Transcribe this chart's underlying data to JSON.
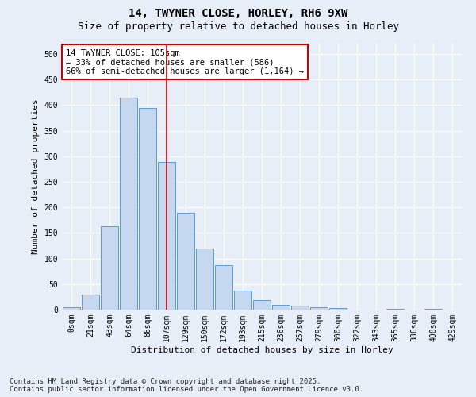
{
  "title": "14, TWYNER CLOSE, HORLEY, RH6 9XW",
  "subtitle": "Size of property relative to detached houses in Horley",
  "xlabel": "Distribution of detached houses by size in Horley",
  "ylabel": "Number of detached properties",
  "categories": [
    "0sqm",
    "21sqm",
    "43sqm",
    "64sqm",
    "86sqm",
    "107sqm",
    "129sqm",
    "150sqm",
    "172sqm",
    "193sqm",
    "215sqm",
    "236sqm",
    "257sqm",
    "279sqm",
    "300sqm",
    "322sqm",
    "343sqm",
    "365sqm",
    "386sqm",
    "408sqm",
    "429sqm"
  ],
  "bar_values": [
    4,
    30,
    163,
    415,
    395,
    288,
    189,
    120,
    87,
    38,
    18,
    10,
    8,
    4,
    3,
    0,
    0,
    2,
    0,
    1,
    0
  ],
  "bar_color": "#c5d8f0",
  "bar_edge_color": "#5b9bd5",
  "vline_bin_index": 5,
  "vline_color": "#cc0000",
  "annotation_text": "14 TWYNER CLOSE: 105sqm\n← 33% of detached houses are smaller (586)\n66% of semi-detached houses are larger (1,164) →",
  "annotation_box_color": "#ffffff",
  "annotation_box_edge_color": "#cc0000",
  "ylim": [
    0,
    520
  ],
  "yticks": [
    0,
    50,
    100,
    150,
    200,
    250,
    300,
    350,
    400,
    450,
    500
  ],
  "footer_text": "Contains HM Land Registry data © Crown copyright and database right 2025.\nContains public sector information licensed under the Open Government Licence v3.0.",
  "bg_color": "#e8eef8",
  "plot_bg_color": "#e8eef8",
  "grid_color": "#ffffff",
  "title_fontsize": 10,
  "subtitle_fontsize": 9,
  "label_fontsize": 8,
  "tick_fontsize": 7,
  "footer_fontsize": 6.5
}
